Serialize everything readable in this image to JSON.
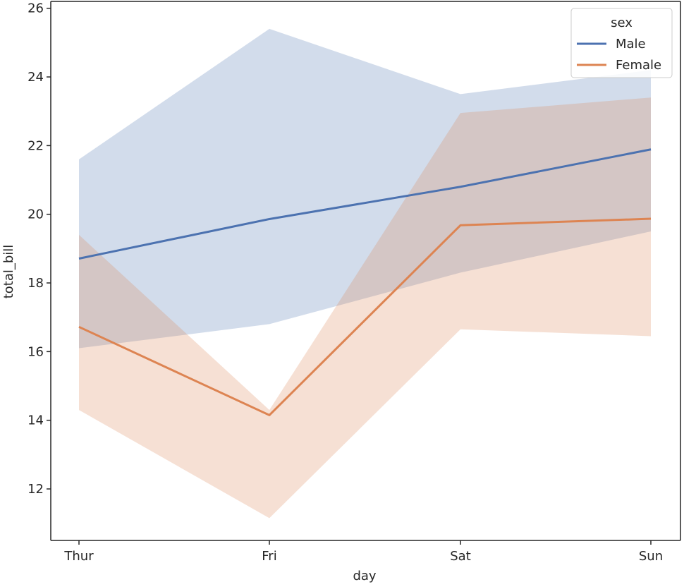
{
  "chart_data": {
    "type": "line",
    "title": "",
    "xlabel": "day",
    "ylabel": "total_bill",
    "categories": [
      "Thur",
      "Fri",
      "Sat",
      "Sun"
    ],
    "ylim": [
      10.5,
      26.2
    ],
    "yticks": [
      12,
      14,
      16,
      18,
      20,
      22,
      24,
      26
    ],
    "grid": false,
    "legend": {
      "title": "sex",
      "placement": "top-right"
    },
    "series": [
      {
        "name": "Male",
        "color": "#4c72b0",
        "band_color": "#c8d7ea",
        "values": [
          18.71,
          19.86,
          20.8,
          21.89
        ],
        "ci_lower": [
          16.1,
          16.8,
          18.3,
          19.5
        ],
        "ci_upper": [
          21.6,
          25.4,
          23.5,
          24.2
        ]
      },
      {
        "name": "Female",
        "color": "#dd8452",
        "band_color": "#f8d8bb",
        "values": [
          16.72,
          14.15,
          19.68,
          19.87
        ],
        "ci_lower": [
          14.3,
          11.15,
          16.65,
          16.45
        ],
        "ci_upper": [
          19.4,
          14.3,
          22.95,
          23.4
        ]
      }
    ]
  }
}
